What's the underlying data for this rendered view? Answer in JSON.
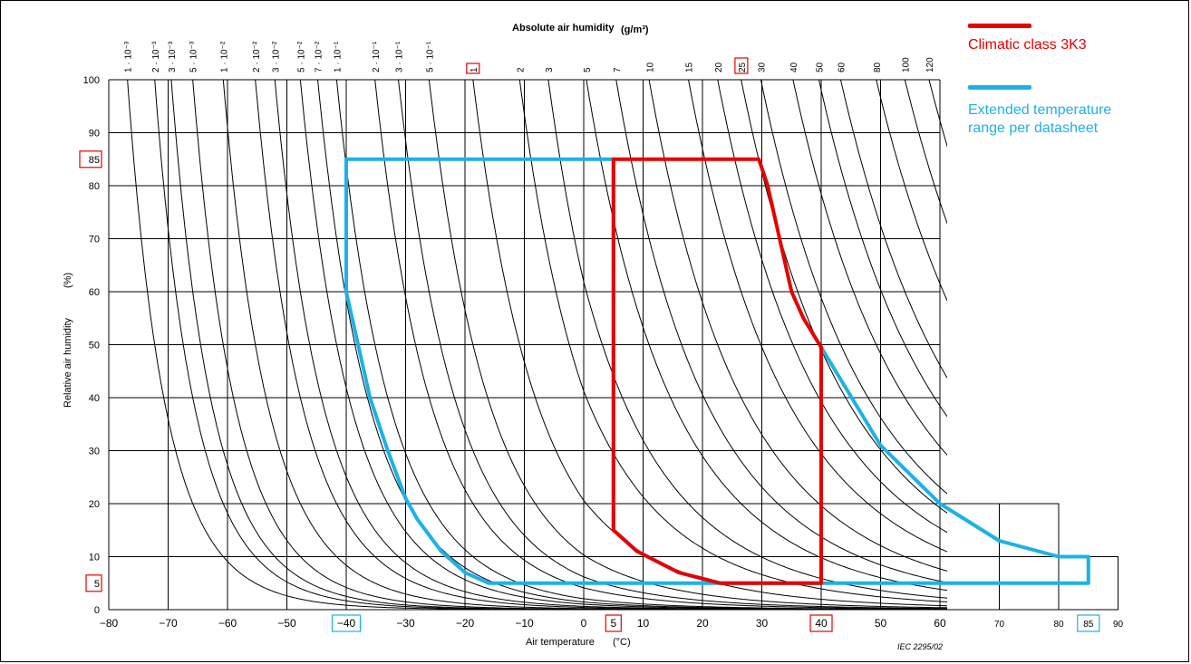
{
  "chart_data": {
    "type": "line",
    "title": "Absolute air humidity",
    "title_unit": "(g/m³)",
    "xlabel": "Air temperature",
    "xlabel_unit": "(°C)",
    "ylabel": "Relative air humidity",
    "ylabel_unit": "(%)",
    "xlim": [
      -80,
      90
    ],
    "ylim": [
      0,
      100
    ],
    "x_ticks": [
      "-80",
      "-70",
      "-60",
      "-50",
      "-40",
      "-30",
      "-20",
      "-10",
      "0",
      "5",
      "10",
      "20",
      "30",
      "40",
      "50",
      "60",
      "70",
      "80",
      "85",
      "90"
    ],
    "y_ticks": [
      "0",
      "5",
      "10",
      "20",
      "30",
      "40",
      "50",
      "60",
      "70",
      "80",
      "85",
      "90",
      "100"
    ],
    "highlighted_x_ticks": {
      "5": "#e60000",
      "40": "#e60000",
      "-40": "#1cb2e6",
      "85": "#1cb2e6"
    },
    "highlighted_y_ticks": {
      "5": "#e60000",
      "85": "#e60000"
    },
    "absolute_humidity_curves": [
      {
        "label": "1 · 10⁻³",
        "value": 0.001
      },
      {
        "label": "2 · 10⁻³",
        "value": 0.002
      },
      {
        "label": "3 · 10⁻³",
        "value": 0.003
      },
      {
        "label": "5 · 10⁻³",
        "value": 0.005
      },
      {
        "label": "1 · 10⁻²",
        "value": 0.01
      },
      {
        "label": "2 · 10⁻²",
        "value": 0.02
      },
      {
        "label": "3 · 10⁻²",
        "value": 0.03
      },
      {
        "label": "5 · 10⁻²",
        "value": 0.05
      },
      {
        "label": "7 · 10⁻²",
        "value": 0.07
      },
      {
        "label": "1 · 10⁻¹",
        "value": 0.1
      },
      {
        "label": "2 · 10⁻¹",
        "value": 0.2
      },
      {
        "label": "3 · 10⁻¹",
        "value": 0.3
      },
      {
        "label": "5 · 10⁻¹",
        "value": 0.5
      },
      {
        "label": "1",
        "value": 1,
        "highlight": true
      },
      {
        "label": "2",
        "value": 2
      },
      {
        "label": "3",
        "value": 3
      },
      {
        "label": "5",
        "value": 5
      },
      {
        "label": "7",
        "value": 7
      },
      {
        "label": "10",
        "value": 10
      },
      {
        "label": "15",
        "value": 15
      },
      {
        "label": "20",
        "value": 20
      },
      {
        "label": "25",
        "value": 25,
        "highlight": true
      },
      {
        "label": "30",
        "value": 30
      },
      {
        "label": "40",
        "value": 40
      },
      {
        "label": "50",
        "value": 50
      },
      {
        "label": "60",
        "value": 60
      },
      {
        "label": "80",
        "value": 80
      },
      {
        "label": "100",
        "value": 100
      },
      {
        "label": "120",
        "value": 120
      }
    ],
    "series": [
      {
        "name": "Climatic class 3K3",
        "color": "#e60000",
        "points": [
          [
            5,
            85
          ],
          [
            29.5,
            85
          ],
          [
            31,
            80
          ],
          [
            33,
            70
          ],
          [
            35,
            60
          ],
          [
            37,
            55
          ],
          [
            40,
            49.5
          ],
          [
            40,
            5
          ],
          [
            23,
            5
          ],
          [
            16,
            7
          ],
          [
            9,
            11
          ],
          [
            5,
            15
          ],
          [
            5,
            85
          ]
        ]
      },
      {
        "name": "Extended temperature range per datasheet",
        "color": "#1cb2e6",
        "points": [
          [
            -40,
            85
          ],
          [
            5,
            85
          ],
          [
            5,
            15
          ],
          [
            9,
            11
          ],
          [
            16,
            7
          ],
          [
            23,
            5
          ],
          [
            85,
            5
          ],
          [
            85,
            10
          ],
          [
            80,
            10
          ],
          [
            70,
            13
          ],
          [
            60,
            20
          ],
          [
            50,
            31
          ],
          [
            40,
            49.5
          ],
          [
            40,
            5
          ],
          [
            -16,
            5
          ],
          [
            -20,
            7
          ],
          [
            -24,
            11
          ],
          [
            -28,
            17
          ],
          [
            -30,
            21
          ],
          [
            -33,
            30
          ],
          [
            -36,
            40
          ],
          [
            -38,
            50
          ],
          [
            -40,
            60
          ],
          [
            -40,
            85
          ]
        ]
      }
    ],
    "footer_note": "IEC  2295/02"
  },
  "legend": {
    "red_label": "Climatic class 3K3",
    "blue_label_line1": "Extended temperature",
    "blue_label_line2": "range per datasheet"
  }
}
